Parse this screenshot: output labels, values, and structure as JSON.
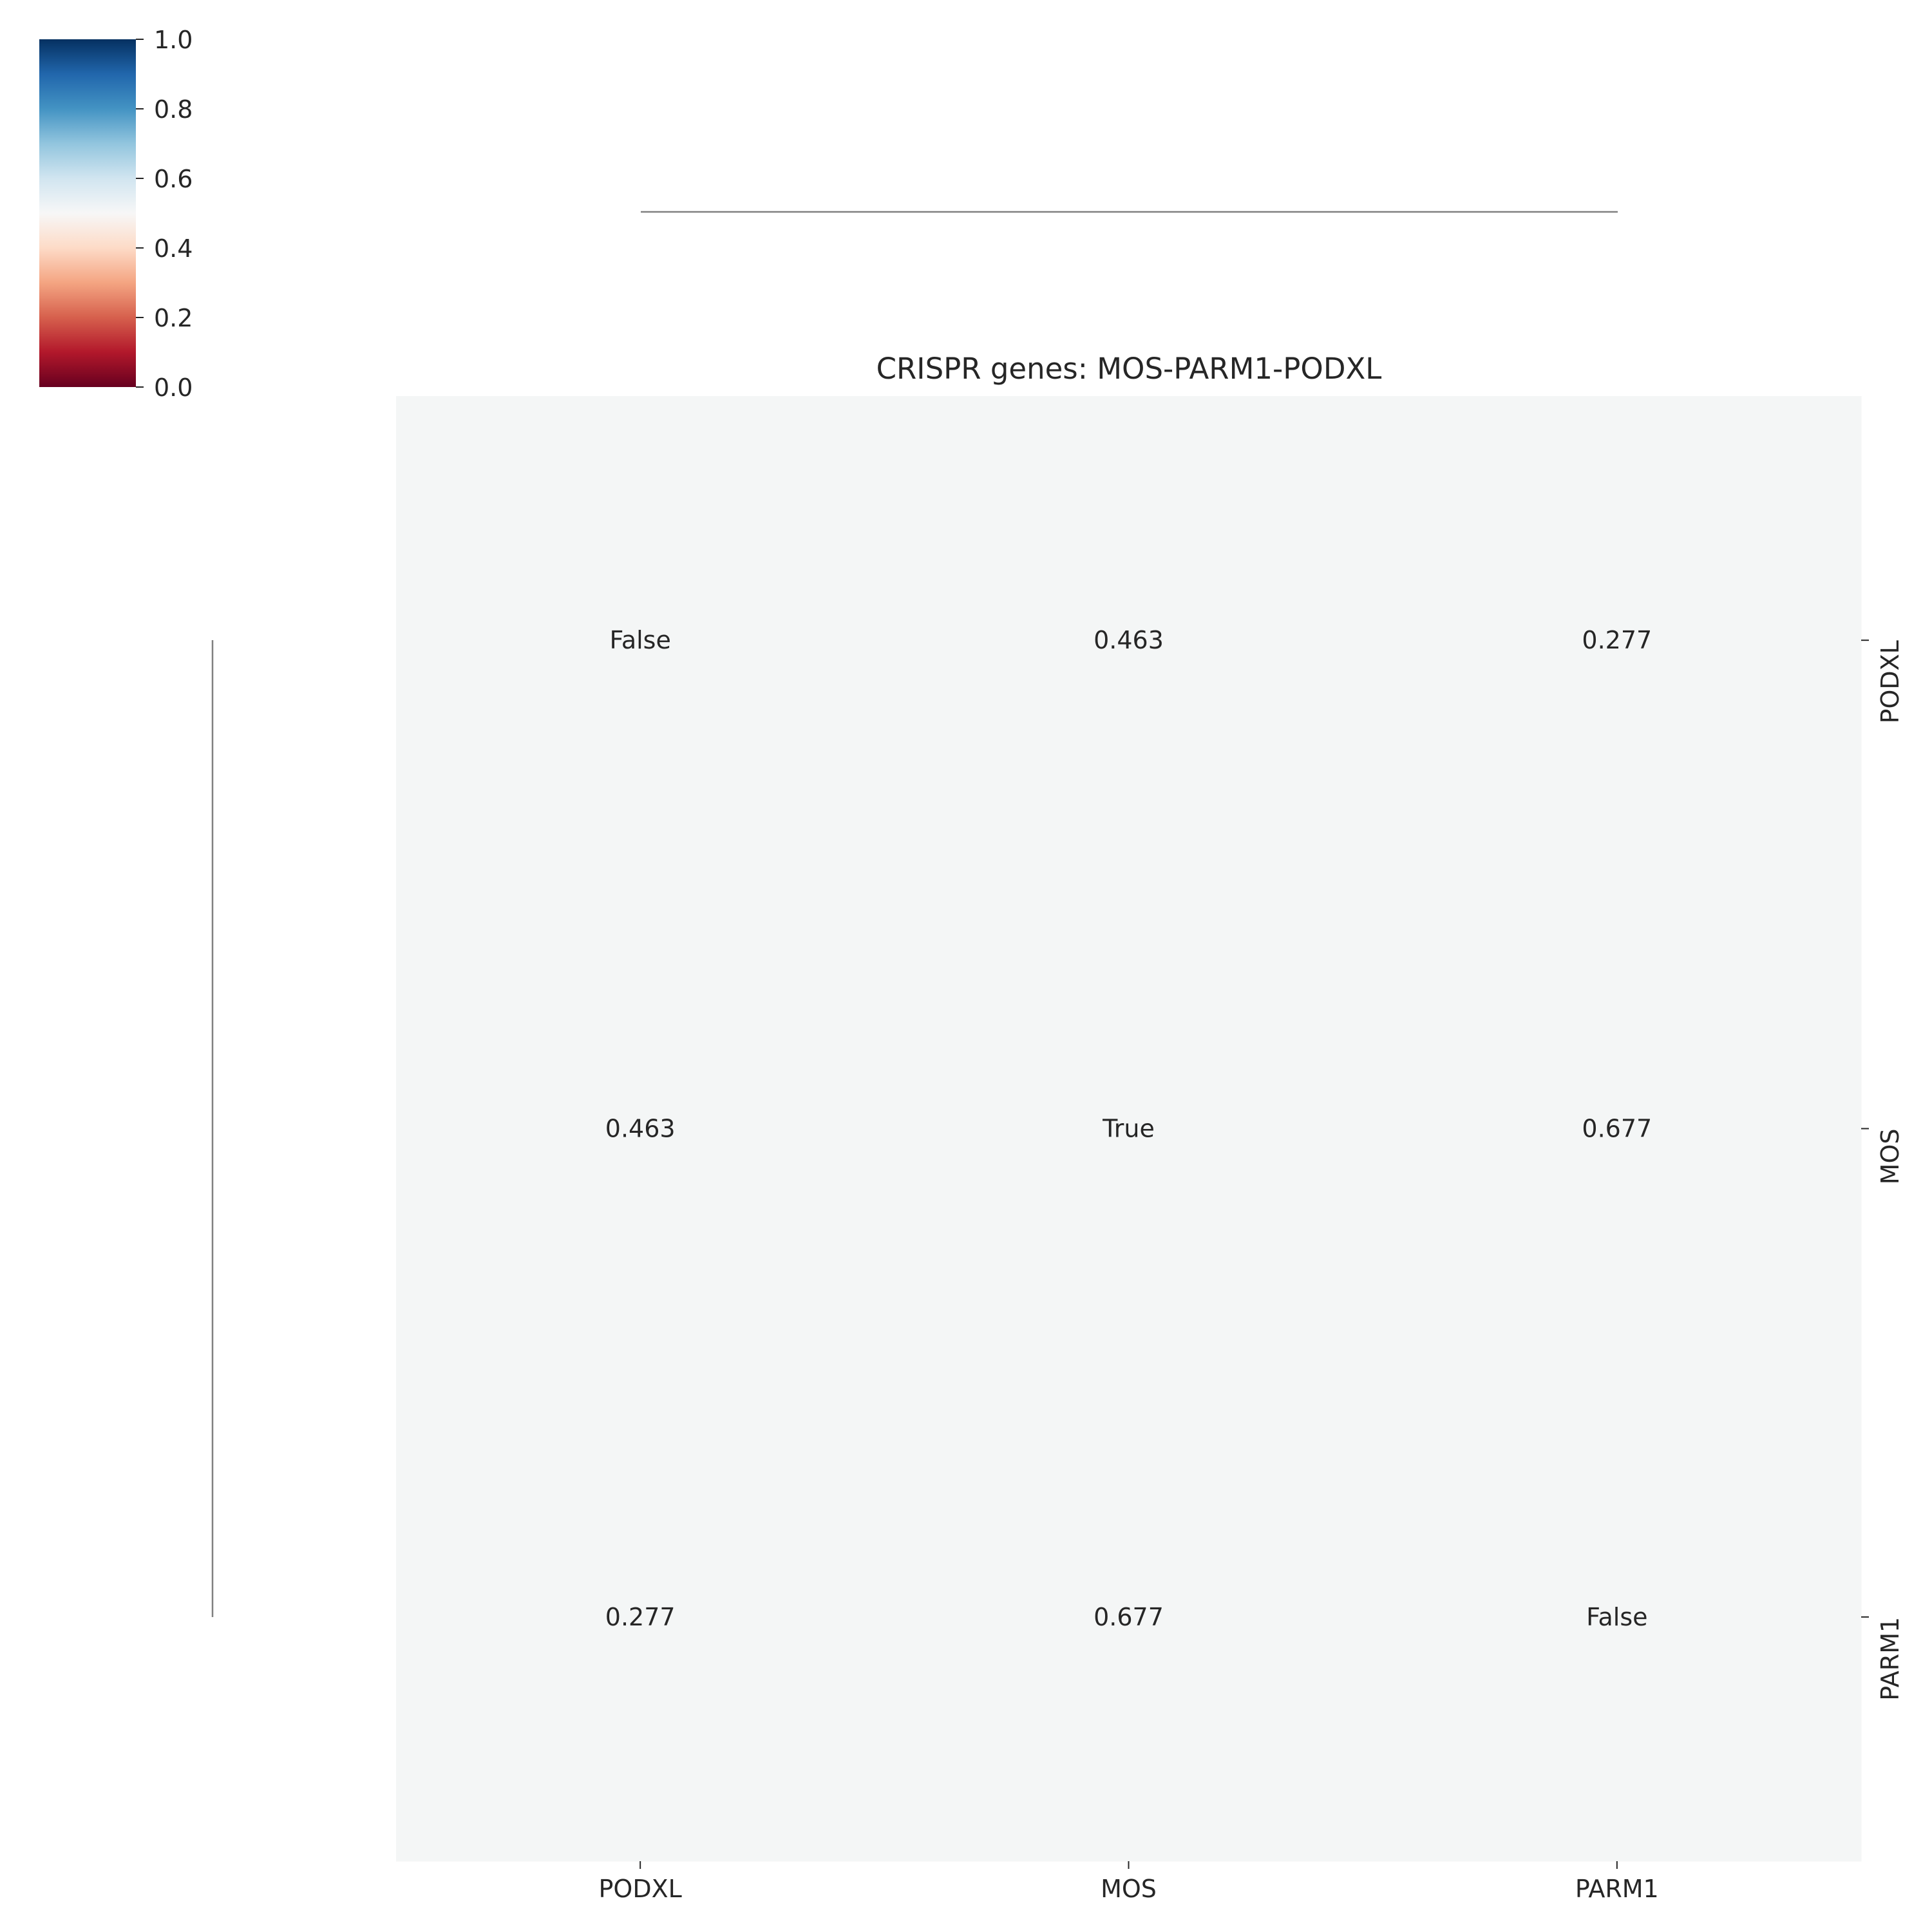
{
  "chart_data": {
    "type": "heatmap",
    "title": "CRISPR genes: MOS-PARM1-PODXL",
    "row_labels": [
      "PODXL",
      "MOS",
      "PARM1"
    ],
    "col_labels": [
      "PODXL",
      "MOS",
      "PARM1"
    ],
    "cell_labels": [
      [
        "False",
        "0.463",
        "0.277"
      ],
      [
        "0.463",
        "True",
        "0.677"
      ],
      [
        "0.277",
        "0.677",
        "False"
      ]
    ],
    "cell_color": "#f4f6f6",
    "colorbar": {
      "range": [
        0,
        1
      ],
      "ticks": [
        "0.0",
        "0.2",
        "0.4",
        "0.6",
        "0.8",
        "1.0"
      ],
      "colormap": "RdBu",
      "stops": [
        "#67001f",
        "#b2182b",
        "#d6604d",
        "#f4a582",
        "#fddbc7",
        "#f7f7f7",
        "#d1e5f0",
        "#92c5de",
        "#4393c3",
        "#2166ac",
        "#053061"
      ]
    },
    "row_ticks_side": "right",
    "dendrograms": [
      "top",
      "left"
    ]
  }
}
